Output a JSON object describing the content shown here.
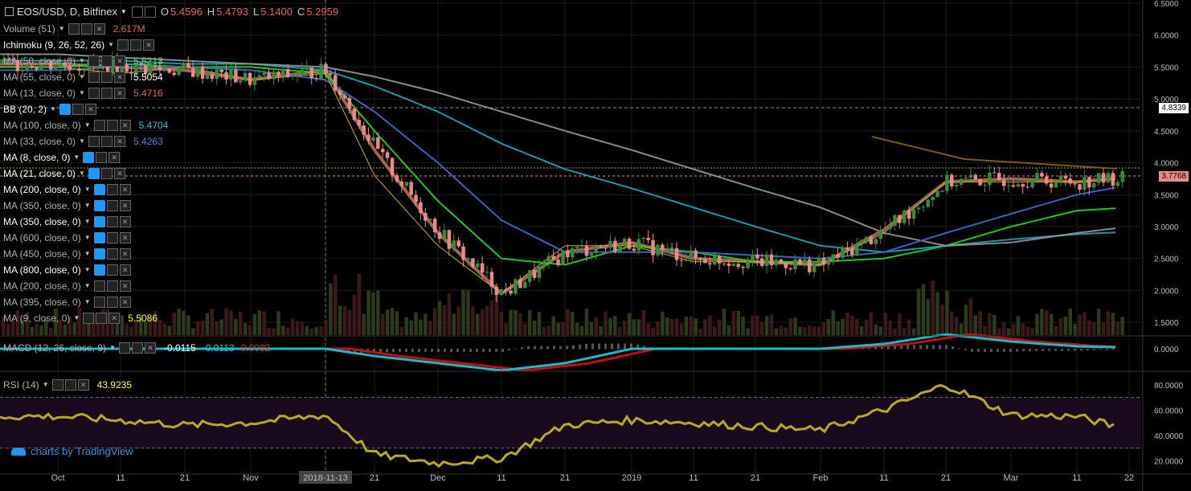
{
  "header": {
    "symbol": "EOS/USD, D, Bitfinex",
    "o_label": "O",
    "o_value": "5.4596",
    "h_label": "H",
    "h_value": "5.4793",
    "l_label": "L",
    "l_value": "5.1400",
    "c_label": "C",
    "c_value": "5.2959"
  },
  "indicators": [
    {
      "label": "Volume (51)",
      "value": "2.617M",
      "value_color": "#e06666",
      "blue": false,
      "bright": false
    },
    {
      "label": "Ichimoku (9, 26, 52, 26)",
      "value": "",
      "value_color": "#ffffff",
      "blue": false,
      "bright": true
    },
    {
      "label": "MA (50, close, 0)",
      "value": "5.5213",
      "value_color": "#5ce15c",
      "blue": false,
      "bright": false
    },
    {
      "label": "MA (55, close, 0)",
      "value": "5.5054",
      "value_color": "#ffffff",
      "blue": false,
      "bright": false
    },
    {
      "label": "MA (13, close, 0)",
      "value": "5.4716",
      "value_color": "#e06666",
      "blue": false,
      "bright": false
    },
    {
      "label": "BB (20, 2)",
      "value": "",
      "value_color": "#ffffff",
      "blue": true,
      "bright": true
    },
    {
      "label": "MA (100, close, 0)",
      "value": "5.4704",
      "value_color": "#26c6da",
      "blue": false,
      "bright": false
    },
    {
      "label": "MA (33, close, 0)",
      "value": "5.4263",
      "value_color": "#5b7bd5",
      "blue": false,
      "bright": false
    },
    {
      "label": "MA (8, close, 0)",
      "value": "",
      "value_color": "#ffffff",
      "blue": true,
      "bright": true
    },
    {
      "label": "MA (21, close, 0)",
      "value": "",
      "value_color": "#ffffff",
      "blue": true,
      "bright": true
    },
    {
      "label": "MA (200, close, 0)",
      "value": "",
      "value_color": "#ffffff",
      "blue": true,
      "bright": true
    },
    {
      "label": "MA (350, close, 0)",
      "value": "",
      "value_color": "#ffffff",
      "blue": true,
      "bright": false
    },
    {
      "label": "MA (350, close, 0)",
      "value": "",
      "value_color": "#ffffff",
      "blue": true,
      "bright": true
    },
    {
      "label": "MA (600, close, 0)",
      "value": "",
      "value_color": "#ffffff",
      "blue": true,
      "bright": false
    },
    {
      "label": "MA (450, close, 0)",
      "value": "",
      "value_color": "#ffffff",
      "blue": true,
      "bright": false
    },
    {
      "label": "MA (800, close, 0)",
      "value": "",
      "value_color": "#ffffff",
      "blue": true,
      "bright": true
    },
    {
      "label": "MA (200, close, 0)",
      "value": "",
      "value_color": "#ffffff",
      "blue": false,
      "bright": false
    },
    {
      "label": "MA (395, close, 0)",
      "value": "",
      "value_color": "#ffffff",
      "blue": false,
      "bright": false
    },
    {
      "label": "MA (9, close, 0)",
      "value": "5.5086",
      "value_color": "#ffff44",
      "blue": false,
      "bright": false
    }
  ],
  "macd": {
    "label": "MACD (12, 26, close, 9)",
    "v1": "-0.0115",
    "v2": "-0.0113",
    "v3": "0.0002"
  },
  "rsi": {
    "label": "RSI (14)",
    "value": "43.9235"
  },
  "price_axis": [
    "6.5000",
    "6.0000",
    "5.5000",
    "5.0000",
    "4.5000",
    "4.0000",
    "3.5000",
    "3.0000",
    "2.5000",
    "2.0000",
    "1.5000"
  ],
  "price_tags": {
    "high_tag": "4.8339",
    "last_tag": "3.7768"
  },
  "macd_axis": [
    "0.0000"
  ],
  "rsi_axis": [
    "80.0000",
    "60.0000",
    "40.0000",
    "20.0000"
  ],
  "time_axis": [
    "Oct",
    "11",
    "21",
    "Nov",
    "2018-11-13",
    "21",
    "Dec",
    "11",
    "21",
    "2019",
    "11",
    "21",
    "Feb",
    "11",
    "21",
    "Mar",
    "11",
    "22"
  ],
  "logo": "charts by TradingView",
  "colors": {
    "up": "#3a8a3a",
    "down": "#e88a8a",
    "ma_green": "#22dd22",
    "ma_brown": "#b46e5a",
    "ma_blue": "#4060c0",
    "ma_cyan": "#20a8c0",
    "ma_gray": "#999999",
    "ma_yellow": "#c8b020",
    "rsi": "#b8aa20"
  },
  "chart_data": {
    "type": "line",
    "title": "EOS/USD, D, Bitfinex",
    "xlabel": "",
    "ylabel": "",
    "ylim": [
      1.3,
      6.5
    ],
    "x": [
      "Oct",
      "Oct 11",
      "Oct 21",
      "Nov",
      "Nov 13",
      "Nov 21",
      "Dec",
      "Dec 11",
      "Dec 21",
      "Jan",
      "Jan 11",
      "Jan 21",
      "Feb",
      "Feb 11",
      "Feb 21",
      "Mar",
      "Mar 11",
      "Mar 22"
    ],
    "series": [
      {
        "values": [
          5.55,
          5.5,
          5.45,
          5.3,
          5.45,
          4.2,
          2.9,
          1.95,
          2.6,
          2.75,
          2.5,
          2.45,
          2.4,
          2.95,
          3.7,
          3.75,
          3.7,
          3.78
        ]
      },
      {
        "values": [
          5.5,
          5.55,
          5.5,
          5.5,
          5.4,
          4.5,
          3.4,
          2.5,
          2.4,
          2.7,
          2.6,
          2.45,
          2.45,
          2.5,
          2.7,
          3.0,
          3.25,
          3.3
        ]
      },
      {
        "values": [
          5.6,
          5.6,
          5.55,
          5.55,
          5.45,
          5.2,
          4.8,
          4.3,
          3.9,
          3.6,
          3.3,
          3.0,
          2.7,
          2.6,
          2.7,
          2.8,
          2.88,
          2.92
        ]
      },
      {
        "values": [
          5.7,
          5.65,
          5.6,
          5.55,
          5.5,
          5.35,
          5.1,
          4.8,
          4.5,
          4.2,
          3.9,
          3.6,
          3.3,
          2.9,
          2.7,
          2.75,
          2.9,
          3.0
        ]
      }
    ],
    "volume_panel": true,
    "rsi": {
      "values": [
        55,
        52,
        48,
        50,
        56,
        25,
        18,
        22,
        48,
        52,
        50,
        47,
        44,
        60,
        80,
        56,
        55,
        44
      ],
      "levels": [
        70,
        30
      ],
      "ylim": [
        10,
        90
      ]
    },
    "grid": true
  }
}
